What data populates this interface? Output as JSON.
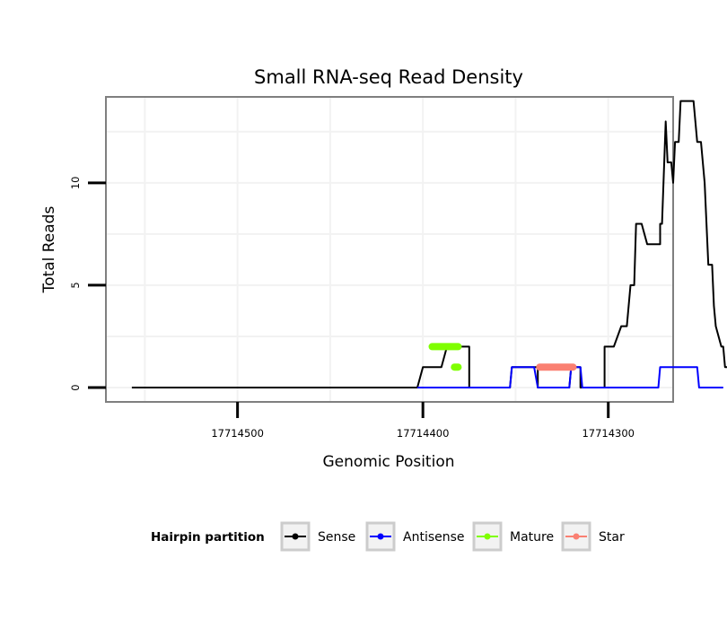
{
  "chart_data": {
    "type": "line",
    "title": "Small RNA-seq Read Density",
    "xlabel": "Genomic Position",
    "ylabel": "Total Reads",
    "xlim": [
      17714571,
      17714265
    ],
    "ylim": [
      -0.7,
      14.2
    ],
    "x_ticks": [
      17714500,
      17714400,
      17714300
    ],
    "x_tick_labels": [
      "17714500",
      "17714400",
      "17714300"
    ],
    "y_ticks": [
      0,
      5,
      10
    ],
    "y_tick_labels": [
      "0",
      "5",
      "10"
    ],
    "grid": true,
    "legend": {
      "title": "Hairpin partition",
      "position": "bottom",
      "entries": [
        {
          "label": "Sense",
          "color": "#000000"
        },
        {
          "label": "Antisense",
          "color": "#0000ff"
        },
        {
          "label": "Mature",
          "color": "#7fff00"
        },
        {
          "label": "Star",
          "color": "#fa8072"
        }
      ]
    },
    "series": [
      {
        "name": "Sense",
        "color": "#000000",
        "width": 2,
        "x": [
          17714557,
          17714403,
          17714400,
          17714397,
          17714397,
          17714395,
          17714393,
          17714390,
          17714387,
          17714387,
          17714383,
          17714383,
          17714380,
          17714378,
          17714375,
          17714375,
          17714353,
          17714352,
          17714340,
          17714339,
          17714338,
          17714338,
          17714321,
          17714320,
          17714315,
          17714315,
          17714302,
          17714302,
          17714299,
          17714297,
          17714293,
          17714290,
          17714288,
          17714286,
          17714285,
          17714284,
          17714282,
          17714279,
          17714279,
          17714277,
          17714274,
          17714273,
          17714272,
          17714272,
          17714271,
          17714269,
          17714268,
          17714266,
          17714265,
          17714264,
          17714262,
          17714261,
          17714259,
          17714258,
          17714257,
          17714255,
          17714254,
          17714252,
          17714250,
          17714248,
          17714246,
          17714244,
          17714243,
          17714242,
          17714239,
          17714238,
          17714237,
          17714236,
          17714235,
          17714232,
          17714230
        ],
        "y": [
          0,
          0,
          1,
          1,
          1,
          1,
          1,
          1,
          2,
          2,
          2,
          2,
          2,
          2,
          2,
          0,
          0,
          1,
          1,
          1,
          1,
          0,
          0,
          1,
          1,
          0,
          0,
          2,
          2,
          2,
          3,
          3,
          5,
          5,
          8,
          8,
          8,
          7,
          7,
          7,
          7,
          7,
          7,
          8,
          8,
          13,
          11,
          11,
          10,
          12,
          12,
          14,
          14,
          14,
          14,
          14,
          14,
          12,
          12,
          10,
          6,
          6,
          4,
          3,
          2,
          2,
          1,
          1,
          1,
          1,
          1
        ]
      },
      {
        "name": "Antisense",
        "color": "#0000ff",
        "width": 2,
        "x": [
          17714403,
          17714353,
          17714352,
          17714340,
          17714338,
          17714321,
          17714320,
          17714315,
          17714314,
          17714302,
          17714301,
          17714273,
          17714272,
          17714252,
          17714251,
          17714238
        ],
        "y": [
          0,
          0,
          1,
          1,
          0,
          0,
          1,
          1,
          0,
          0,
          0,
          0,
          1,
          1,
          0,
          0
        ]
      }
    ],
    "segments": [
      {
        "name": "Mature",
        "color": "#7fff00",
        "width": 8,
        "x": [
          17714395,
          17714381
        ],
        "y": 2
      },
      {
        "name": "Mature",
        "color": "#7fff00",
        "width": 8,
        "x": [
          17714383,
          17714381
        ],
        "y": 1
      },
      {
        "name": "Star",
        "color": "#fa8072",
        "width": 8,
        "x": [
          17714337,
          17714319
        ],
        "y": 1
      }
    ]
  }
}
